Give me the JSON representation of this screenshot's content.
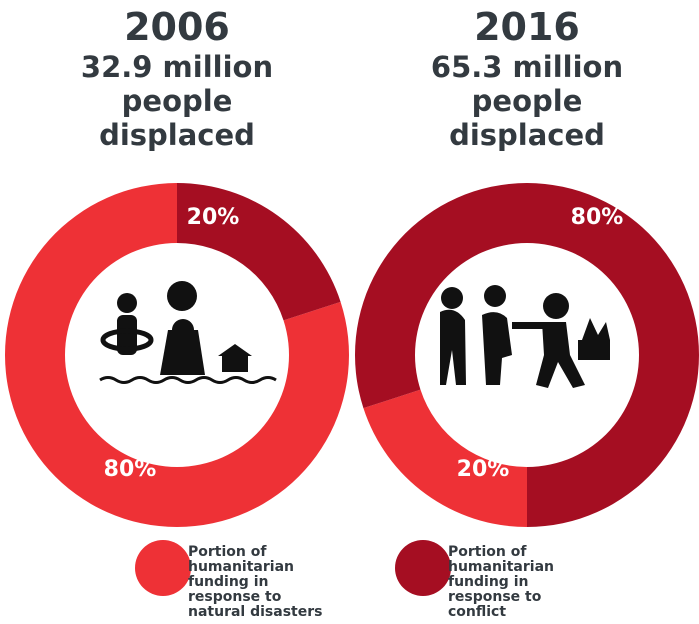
{
  "chart_data": [
    {
      "type": "donut",
      "title": "2006",
      "subtitle": "32.9 million people displaced",
      "values": [
        80,
        20
      ],
      "value_labels": [
        "80%",
        "20%"
      ]
    },
    {
      "type": "donut",
      "title": "2016",
      "subtitle": "65.3 million people displaced",
      "values": [
        20,
        80
      ],
      "value_labels": [
        "20%",
        "80%"
      ]
    }
  ],
  "legend": {
    "items": [
      {
        "label": "Portion of humanitarian funding in response to natural disasters",
        "color": "#ee3136"
      },
      {
        "label": "Portion of humanitarian funding in response to conflict",
        "color": "#a50e22"
      }
    ]
  }
}
